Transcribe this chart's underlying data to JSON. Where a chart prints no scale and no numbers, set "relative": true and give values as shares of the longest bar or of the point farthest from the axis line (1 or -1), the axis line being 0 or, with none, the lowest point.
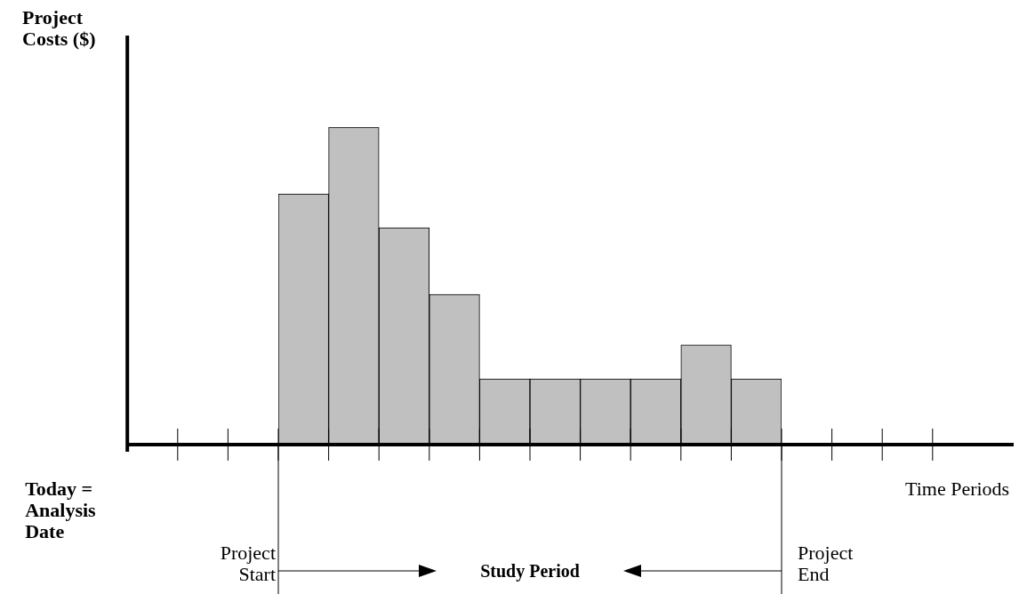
{
  "chart_data": {
    "type": "bar",
    "relative": true,
    "categories": [
      null,
      null,
      null,
      null,
      null,
      null,
      null,
      null,
      null,
      null
    ],
    "values": [
      0.79,
      1,
      0.683,
      0.473,
      0.207,
      0.207,
      0.207,
      0.207,
      0.314,
      0.207
    ],
    "color": "#c0c0c0",
    "annotations": [
      "Project Costs ($)",
      "Today = Analysis Date",
      "Time Periods",
      "Project Start",
      "Project End",
      "Study Period"
    ]
  }
}
